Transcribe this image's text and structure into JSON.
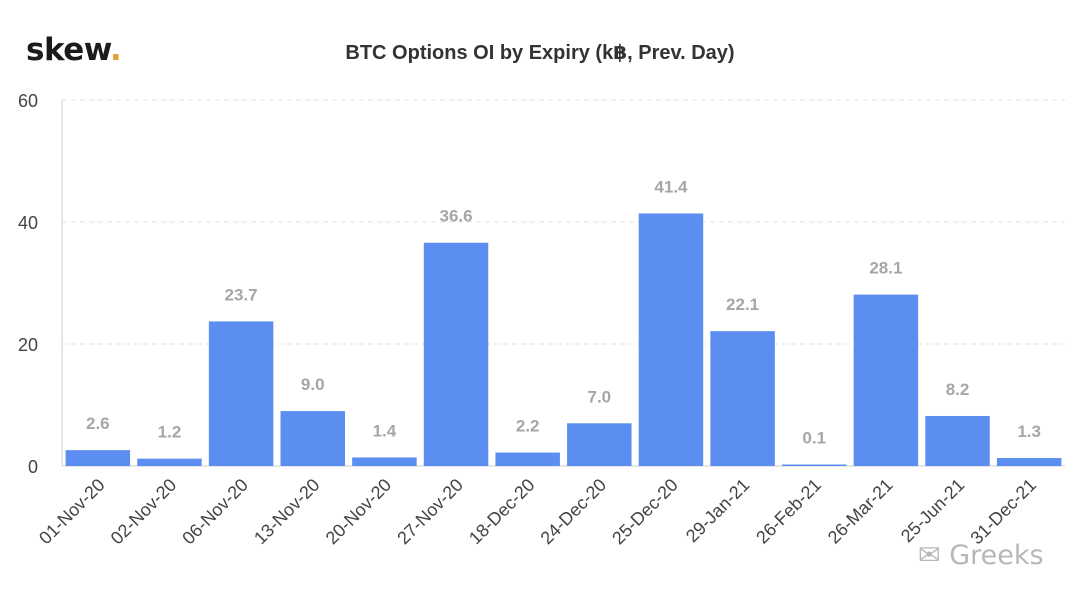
{
  "brand": {
    "name": "skew",
    "dot": "."
  },
  "watermark": {
    "icon": "wechat-icon",
    "text": "Greeks"
  },
  "colors": {
    "bar": "#5b8ef0",
    "label": "#a6a6a6",
    "tick": "#444444",
    "grid": "#e2e2e2"
  },
  "chart_data": {
    "type": "bar",
    "title": "BTC Options OI by Expiry (k฿, Prev. Day)",
    "xlabel": "",
    "ylabel": "",
    "categories": [
      "01-Nov-20",
      "02-Nov-20",
      "06-Nov-20",
      "13-Nov-20",
      "20-Nov-20",
      "27-Nov-20",
      "18-Dec-20",
      "24-Dec-20",
      "25-Dec-20",
      "29-Jan-21",
      "26-Feb-21",
      "26-Mar-21",
      "25-Jun-21",
      "31-Dec-21"
    ],
    "values": [
      2.6,
      1.2,
      23.7,
      9.0,
      1.4,
      36.6,
      2.2,
      7.0,
      41.4,
      22.1,
      0.1,
      28.1,
      8.2,
      1.3
    ],
    "value_labels": [
      "2.6",
      "1.2",
      "23.7",
      "9.0",
      "1.4",
      "36.6",
      "2.2",
      "7.0",
      "41.4",
      "22.1",
      "0.1",
      "28.1",
      "8.2",
      "1.3"
    ],
    "ylim": [
      0,
      60
    ],
    "yticks": [
      "0",
      "20",
      "40",
      "60"
    ],
    "grid": true,
    "legend": "none"
  }
}
